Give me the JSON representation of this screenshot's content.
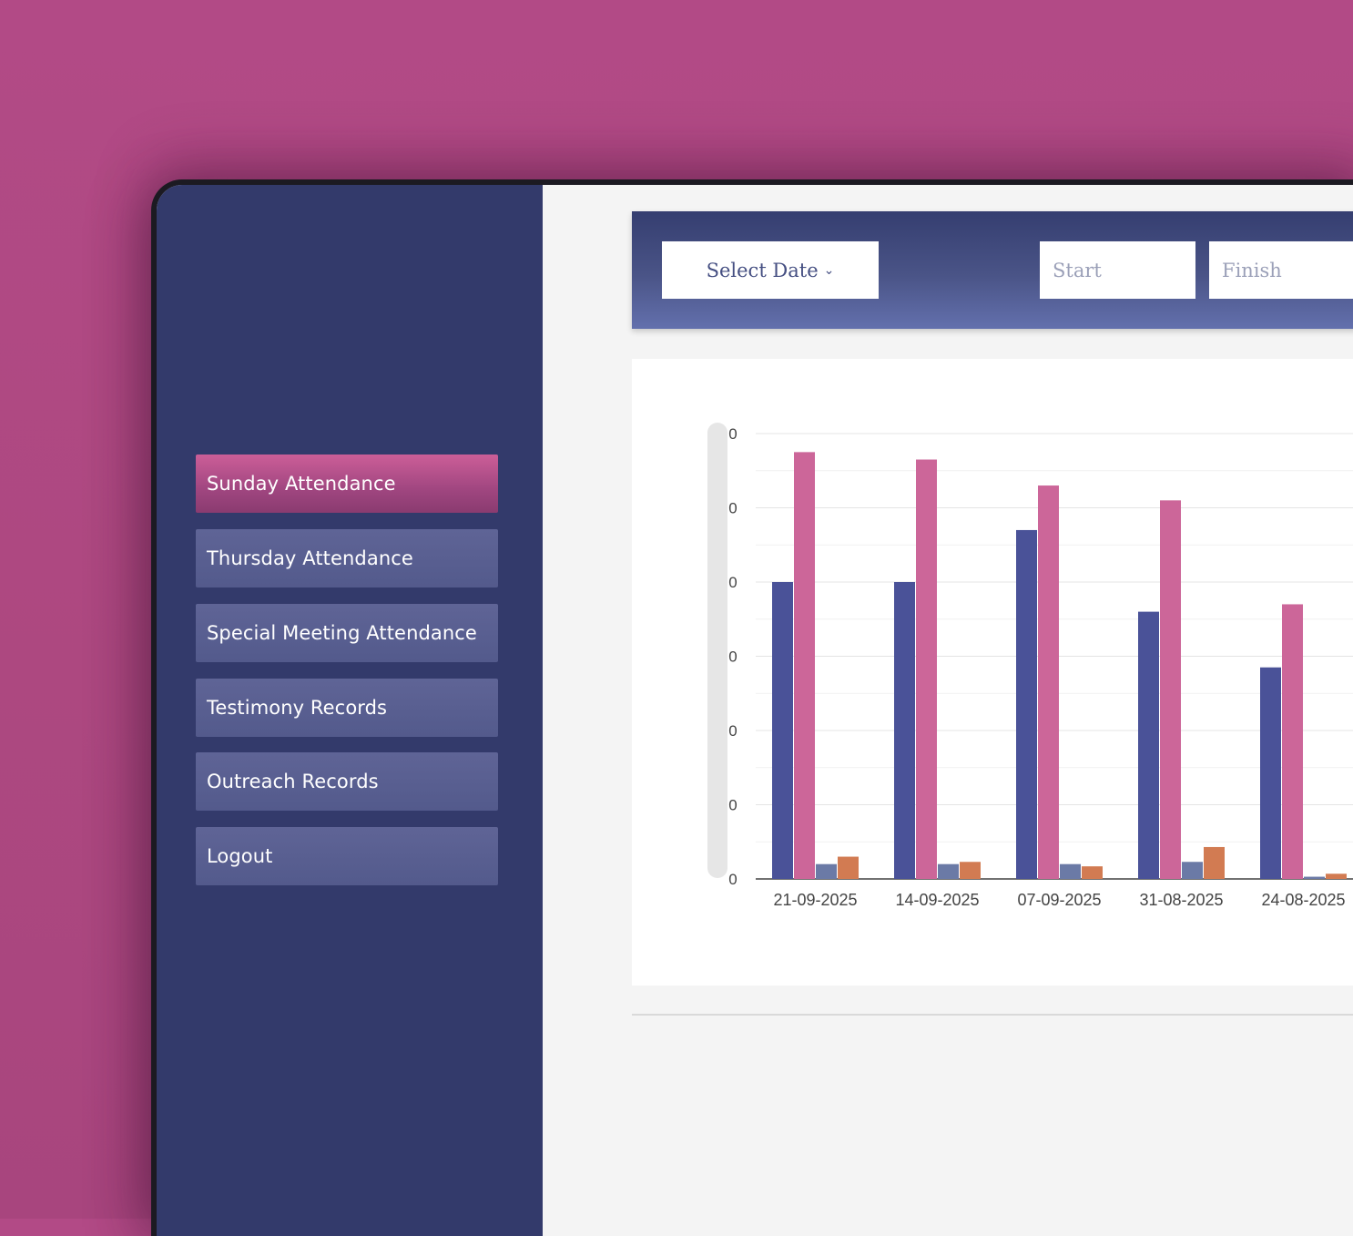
{
  "sidebar": {
    "items": [
      {
        "label": "Sunday Attendance",
        "active": true
      },
      {
        "label": "Thursday Attendance"
      },
      {
        "label": "Special Meeting Attendance"
      },
      {
        "label": "Testimony Records"
      },
      {
        "label": "Outreach Records"
      },
      {
        "label": "Logout"
      }
    ]
  },
  "toolbar": {
    "select_date_label": "Select Date",
    "start_placeholder": "Start",
    "finish_placeholder": "Finish"
  },
  "colors": {
    "series_1": "#4a5298",
    "series_2": "#cc6699",
    "series_3": "#6b7aa6",
    "series_4": "#d27b52"
  },
  "chart_data": {
    "type": "bar",
    "categories": [
      "21-09-2025",
      "14-09-2025",
      "07-09-2025",
      "31-08-2025",
      "24-08-2025"
    ],
    "series": [
      {
        "values": [
          40,
          40,
          47,
          36,
          28.5
        ]
      },
      {
        "values": [
          57.5,
          56.5,
          53,
          51,
          37
        ]
      },
      {
        "values": [
          2,
          2,
          2,
          2.3,
          0.3
        ]
      },
      {
        "values": [
          3,
          2.3,
          1.7,
          4.3,
          0.7
        ]
      }
    ],
    "y_tick_labels": [
      "0",
      "0",
      "0",
      "0",
      "0",
      "0",
      "0"
    ],
    "ylim": [
      0,
      60
    ],
    "grid": true
  }
}
